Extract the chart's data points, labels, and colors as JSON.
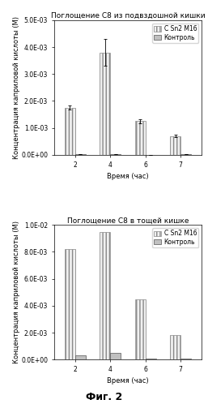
{
  "chart1": {
    "title": "Поглощение C8 из подвздошной кишки",
    "xlabel": "Время (час)",
    "ylabel": "Концентрация каприловой кислоты (М)",
    "times": [
      2,
      4,
      6,
      7
    ],
    "sn2_values": [
      0.00175,
      0.0038,
      0.00125,
      0.0007
    ],
    "control_values": [
      3e-05,
      3e-05,
      1e-05,
      3e-05
    ],
    "sn2_errors": [
      8e-05,
      0.0005,
      8e-05,
      4e-05
    ],
    "control_errors": [
      5e-06,
      5e-06,
      2e-06,
      5e-06
    ],
    "ylim": [
      0,
      0.005
    ],
    "yticks": [
      0,
      0.001,
      0.002,
      0.003,
      0.004,
      0.005
    ],
    "ytick_labels": [
      "0.0E+00",
      "1.0E-03",
      "2.0E-03",
      "3.0E-03",
      "4.0E-03",
      "5.0E-03"
    ]
  },
  "chart2": {
    "title": "Поглощение C8 в тощей кишке",
    "xlabel": "Время (час)",
    "ylabel": "Концентрация каприловой кислоты (М)",
    "times": [
      2,
      4,
      6,
      7
    ],
    "sn2_values": [
      0.0082,
      0.0095,
      0.0045,
      0.0018
    ],
    "control_values": [
      0.0003,
      0.0005,
      5e-05,
      5e-05
    ],
    "sn2_errors": [
      0,
      0,
      0,
      0
    ],
    "control_errors": [
      0,
      0,
      0,
      0
    ],
    "ylim": [
      0,
      0.01
    ],
    "yticks": [
      0,
      0.002,
      0.004,
      0.006,
      0.008,
      0.01
    ],
    "ytick_labels": [
      "0.0E+00",
      "2.0E-03",
      "4.0E-03",
      "6.0E-03",
      "8.0E-03",
      "1.0E-02"
    ]
  },
  "legend_labels": [
    "C Sn2 M16",
    "Контроль"
  ],
  "sn2_facecolor": "#f0f0f0",
  "sn2_hatch": "||||",
  "sn2_edgecolor": "#888888",
  "control_facecolor": "#c0c0c0",
  "control_hatch": "====",
  "control_edgecolor": "#555555",
  "bar_width": 0.3,
  "fig_caption": "Фиг. 2",
  "background_color": "#ffffff",
  "title_fontsize": 6.5,
  "axis_fontsize": 6,
  "tick_fontsize": 5.5,
  "legend_fontsize": 5.5
}
